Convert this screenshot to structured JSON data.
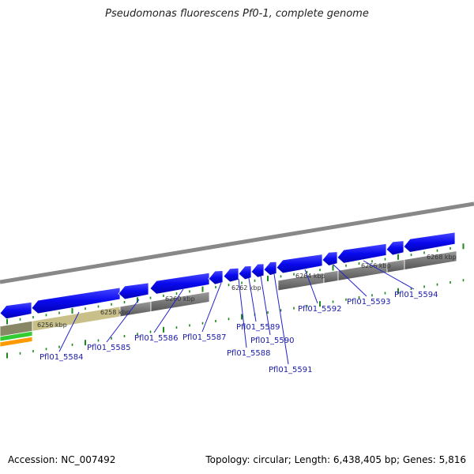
{
  "title": "Pseudomonas fluorescens Pf0-1, complete genome",
  "footer": {
    "accession": "Accession: NC_007492",
    "summary": "Topology: circular; Length: 6,438,405 bp; Genes: 5,816"
  },
  "scale_labels": [
    "6256 kbp",
    "6258 kbp",
    "6260 kbp",
    "6262 kbp",
    "6264 kbp",
    "6266 kbp",
    "6268 kbp"
  ],
  "genes": [
    {
      "name": "Pfl01_5584"
    },
    {
      "name": "Pfl01_5585"
    },
    {
      "name": "Pfl01_5586"
    },
    {
      "name": "Pfl01_5587"
    },
    {
      "name": "Pfl01_5588"
    },
    {
      "name": "Pfl01_5589"
    },
    {
      "name": "Pfl01_5590"
    },
    {
      "name": "Pfl01_5591"
    },
    {
      "name": "Pfl01_5592"
    },
    {
      "name": "Pfl01_5593"
    },
    {
      "name": "Pfl01_5594"
    }
  ],
  "colors": {
    "gene_blue": "#0a0af0",
    "backbone_gray": "#888888",
    "track_dark_gray": "#666666",
    "track_olive": "#c8c088",
    "track_green": "#33cc33",
    "track_orange": "#ff9900",
    "tick_green": "#1b8a1b",
    "label_blue": "#1a1aa6"
  }
}
